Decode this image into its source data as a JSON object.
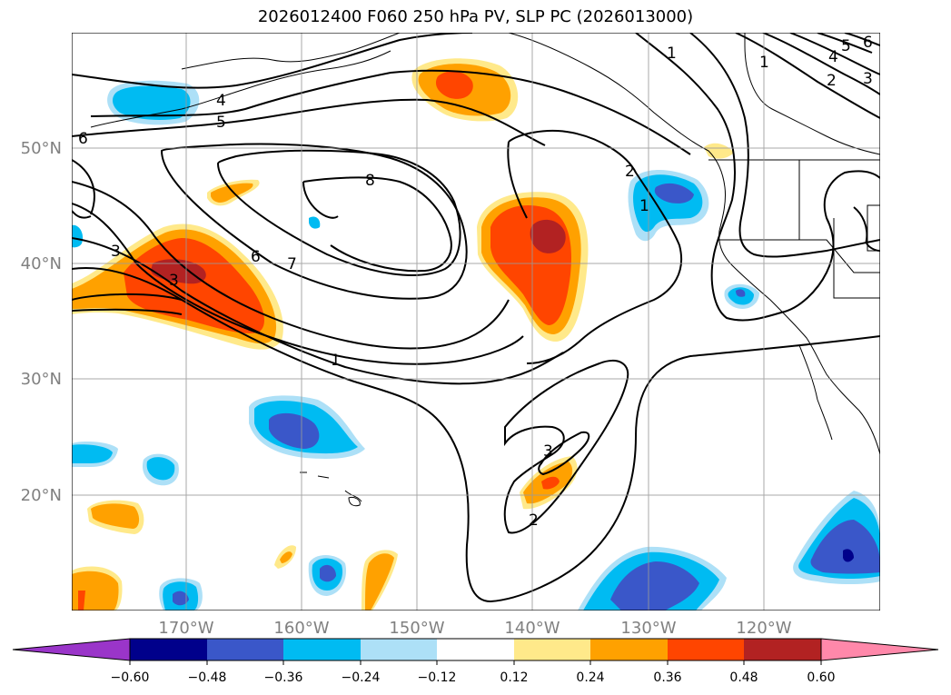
{
  "title": "2026012400 F060 250 hPa PV, SLP PC (2026013000)",
  "map": {
    "lat_labels": [
      "50°N",
      "40°N",
      "30°N",
      "20°N"
    ],
    "lon_labels": [
      "170°W",
      "160°W",
      "150°W",
      "140°W",
      "130°W",
      "120°W"
    ]
  },
  "contour_labels": [
    "4",
    "5",
    "6",
    "8",
    "6",
    "7",
    "1",
    "3",
    "3",
    "2",
    "1",
    "1",
    "2",
    "3",
    "4",
    "5",
    "6",
    "3",
    "2",
    "1"
  ],
  "colorbar": {
    "ticks": [
      "−0.60",
      "−0.48",
      "−0.36",
      "−0.24",
      "−0.12",
      "0.12",
      "0.24",
      "0.36",
      "0.48",
      "0.60"
    ],
    "colors": [
      "#9a35c9",
      "#00008b",
      "#3a57c9",
      "#00bbf2",
      "#ade0f7",
      "#ffffff",
      "#ffe98a",
      "#ffa100",
      "#ff4500",
      "#b22222",
      "#ff88aa"
    ]
  }
}
